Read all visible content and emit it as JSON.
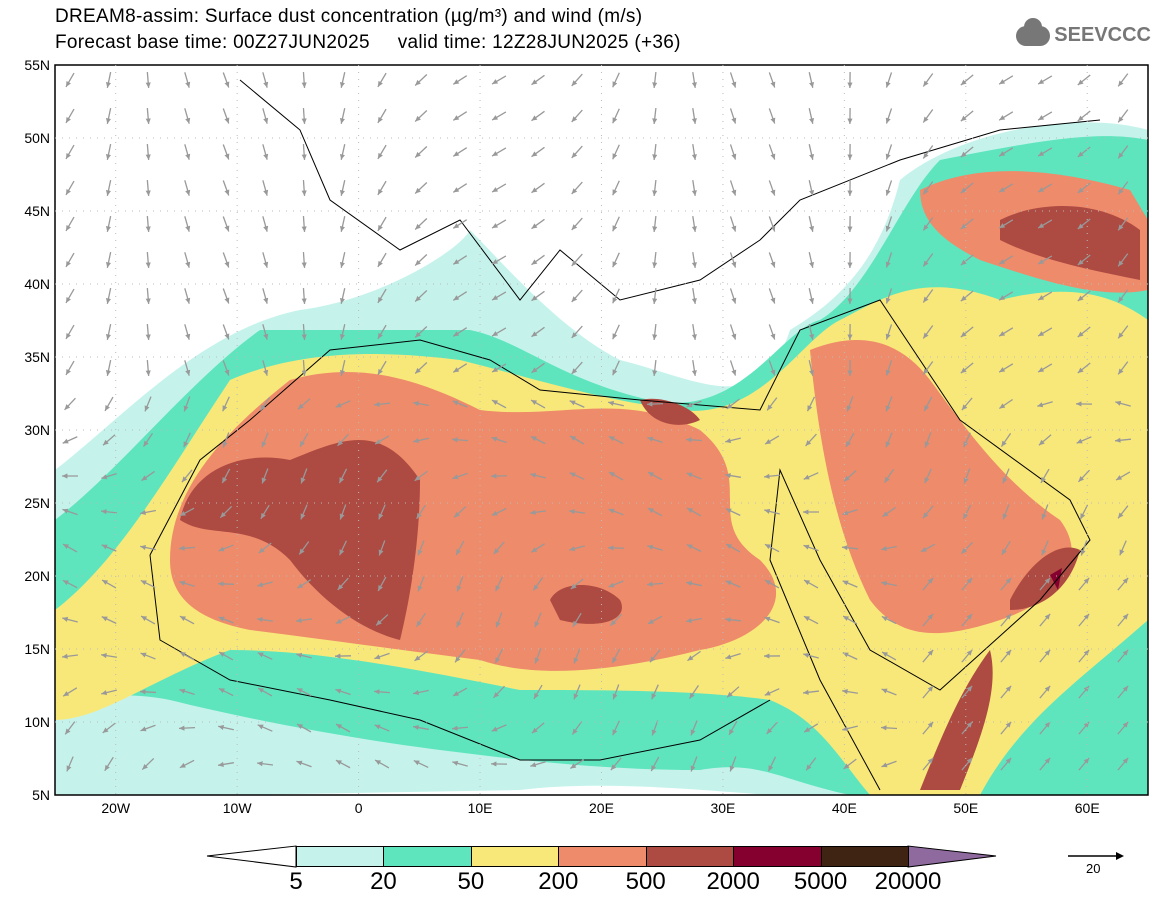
{
  "title_line1": "DREAM8-assim: Surface dust concentration (µg/m³) and wind (m/s)",
  "title_line2": "Forecast base time: 00Z27JUN2025     valid time: 12Z28JUN2025 (+36)",
  "logo_text": "SEEVCCC",
  "lat_labels": [
    "55N",
    "50N",
    "45N",
    "40N",
    "35N",
    "30N",
    "25N",
    "20N",
    "15N",
    "10N",
    "5N"
  ],
  "lon_labels": [
    "20W",
    "10W",
    "0",
    "10E",
    "20E",
    "30E",
    "40E",
    "50E",
    "60E"
  ],
  "colorbar": {
    "colors": [
      "#c5f3ec",
      "#5ee5be",
      "#f8e87a",
      "#ee8b6a",
      "#ad4a42",
      "#86002f",
      "#3f2414",
      "#8e6a9e"
    ],
    "labels": [
      "5",
      "20",
      "50",
      "200",
      "500",
      "2000",
      "5000",
      "20000"
    ]
  },
  "wind_reference": {
    "label": "20"
  }
}
